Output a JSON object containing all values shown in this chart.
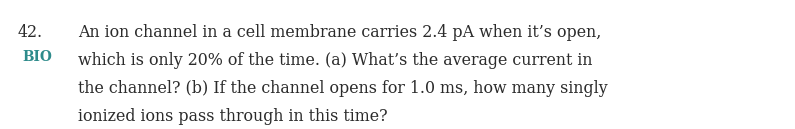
{
  "background_color": "#ffffff",
  "number": "42.",
  "bio_label": "BIO",
  "bio_color": "#2e8b8b",
  "text_color": "#2b2b2b",
  "line1": "An ion channel in a cell membrane carries 2.4 pA when it’s open,",
  "line2": "which is only 20% of the time. (a) What’s the average current in",
  "line3": "the channel? (b) If the channel opens for 1.0 ms, how many singly",
  "line4": "ionized ions pass through in this time?",
  "font_size": 11.4,
  "bio_fontsize": 9.8,
  "fig_width": 7.95,
  "fig_height": 1.29,
  "dpi": 100
}
